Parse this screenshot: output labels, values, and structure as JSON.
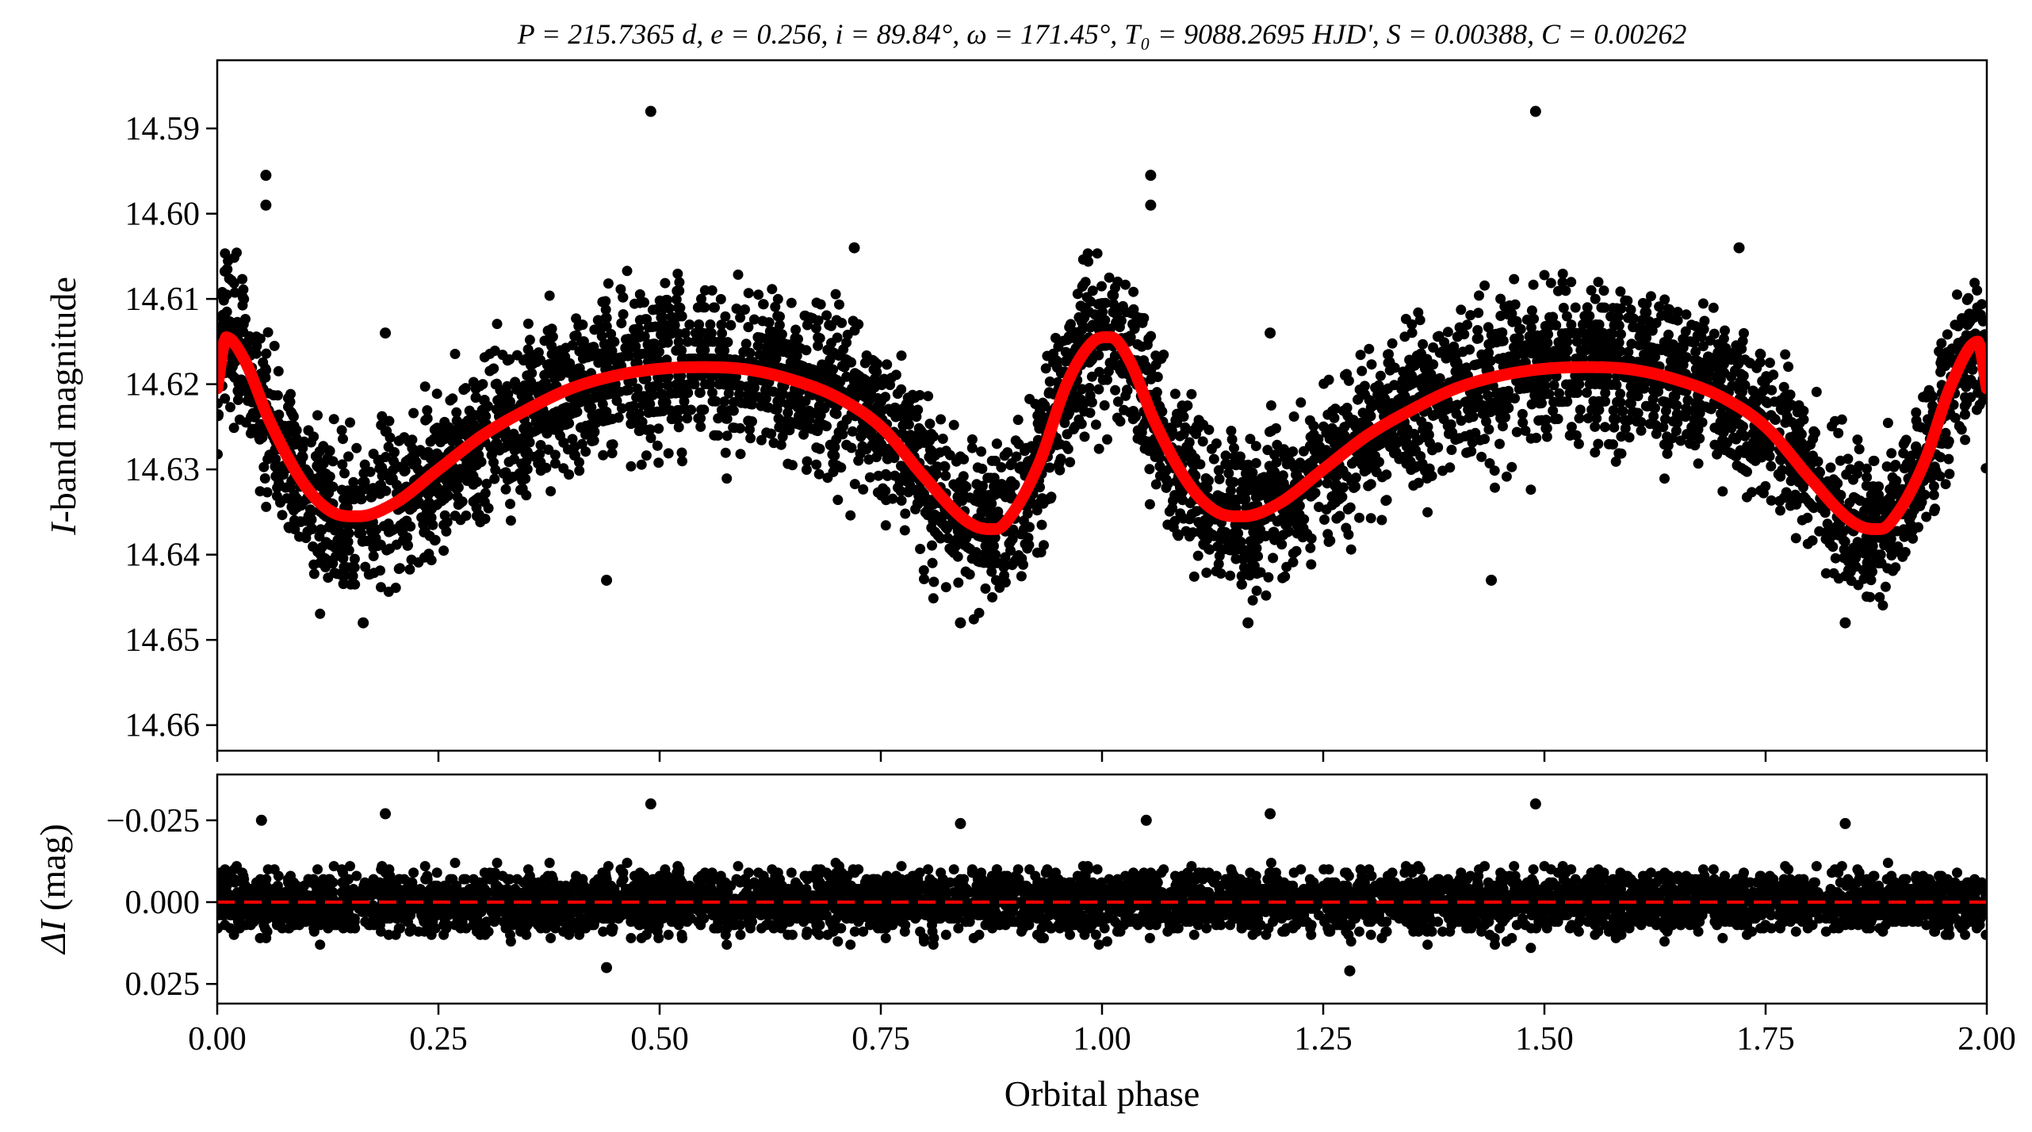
{
  "chart_data": [
    {
      "type": "scatter",
      "title": "P = 215.7365 d, e = 0.256, i = 89.84°, ω = 171.45°, T₀ = 9088.2695 HJD', S = 0.00388, C = 0.00262",
      "xlabel": "Orbital phase",
      "ylabel_prefix": "I",
      "ylabel_suffix": "-band magnitude",
      "ylabel": "I-band magnitude",
      "xlim": [
        0.0,
        2.0
      ],
      "ylim": [
        14.663,
        14.582
      ],
      "y_inverted": true,
      "yticks": [
        14.59,
        14.6,
        14.61,
        14.62,
        14.63,
        14.64,
        14.65,
        14.66
      ],
      "ytick_labels": [
        "14.59",
        "14.60",
        "14.61",
        "14.62",
        "14.63",
        "14.64",
        "14.65",
        "14.66"
      ],
      "xticks": [
        0.0,
        0.25,
        0.5,
        0.75,
        1.0,
        1.25,
        1.5,
        1.75,
        2.0
      ],
      "series": [
        {
          "style": "points",
          "color": "#000000",
          "note_points": "dense cloud following the model with scatter about ±0.007 mag",
          "outliers": [
            {
              "x": 0.055,
              "y": 14.5955
            },
            {
              "x": 0.055,
              "y": 14.599
            },
            {
              "x": 0.19,
              "y": 14.614
            },
            {
              "x": 0.49,
              "y": 14.588
            },
            {
              "x": 0.72,
              "y": 14.604
            },
            {
              "x": 0.84,
              "y": 14.648
            },
            {
              "x": 1.055,
              "y": 14.5955
            },
            {
              "x": 1.055,
              "y": 14.599
            },
            {
              "x": 1.19,
              "y": 14.614
            },
            {
              "x": 1.49,
              "y": 14.588
            },
            {
              "x": 1.72,
              "y": 14.604
            },
            {
              "x": 1.84,
              "y": 14.648
            },
            {
              "x": 0.165,
              "y": 14.648
            },
            {
              "x": 1.165,
              "y": 14.648
            },
            {
              "x": 0.44,
              "y": 14.643
            },
            {
              "x": 1.44,
              "y": 14.643
            }
          ]
        },
        {
          "style": "line",
          "color": "#ff0000",
          "x": [
            0.0,
            0.01,
            0.03,
            0.06,
            0.1,
            0.13,
            0.16,
            0.2,
            0.25,
            0.3,
            0.35,
            0.4,
            0.45,
            0.5,
            0.55,
            0.6,
            0.65,
            0.7,
            0.75,
            0.8,
            0.84,
            0.86,
            0.88,
            0.9,
            0.93,
            0.96,
            0.99,
            1.01,
            1.03,
            1.06,
            1.1,
            1.13,
            1.16,
            1.2,
            1.25,
            1.3,
            1.35,
            1.4,
            1.45,
            1.5,
            1.55,
            1.6,
            1.65,
            1.7,
            1.75,
            1.8,
            1.84,
            1.86,
            1.88,
            1.9,
            1.93,
            1.96,
            1.99,
            2.0
          ],
          "y": [
            14.6205,
            14.6145,
            14.617,
            14.6245,
            14.632,
            14.635,
            14.6355,
            14.634,
            14.63,
            14.626,
            14.623,
            14.6205,
            14.619,
            14.6182,
            14.618,
            14.6183,
            14.6195,
            14.6215,
            14.625,
            14.631,
            14.6355,
            14.6368,
            14.637,
            14.635,
            14.629,
            14.62,
            14.615,
            14.6145,
            14.617,
            14.6245,
            14.632,
            14.635,
            14.6355,
            14.634,
            14.63,
            14.626,
            14.623,
            14.6205,
            14.619,
            14.6182,
            14.618,
            14.6183,
            14.6195,
            14.6215,
            14.625,
            14.631,
            14.6355,
            14.6368,
            14.637,
            14.635,
            14.629,
            14.62,
            14.615,
            14.6205
          ]
        }
      ]
    },
    {
      "type": "scatter",
      "xlabel": "Orbital phase",
      "ylabel_prefix": "ΔI",
      "ylabel_suffix": " (mag)",
      "ylabel": "ΔI (mag)",
      "xlim": [
        0.0,
        2.0
      ],
      "ylim": [
        0.031,
        -0.039
      ],
      "y_inverted": true,
      "yticks": [
        -0.025,
        0.0,
        0.025
      ],
      "ytick_labels": [
        "−0.025",
        "0.000",
        "0.025"
      ],
      "xticks": [
        0.0,
        0.25,
        0.5,
        0.75,
        1.0,
        1.25,
        1.5,
        1.75,
        2.0
      ],
      "xtick_labels": [
        "0.00",
        "0.25",
        "0.50",
        "0.75",
        "1.00",
        "1.25",
        "1.50",
        "1.75",
        "2.00"
      ],
      "series": [
        {
          "style": "points",
          "color": "#000000",
          "note_points": "residual band about ±0.012 mag",
          "outliers": [
            {
              "x": 0.05,
              "y": -0.025
            },
            {
              "x": 0.19,
              "y": -0.027
            },
            {
              "x": 0.49,
              "y": -0.03
            },
            {
              "x": 0.84,
              "y": -0.024
            },
            {
              "x": 1.05,
              "y": -0.025
            },
            {
              "x": 1.19,
              "y": -0.027
            },
            {
              "x": 1.49,
              "y": -0.03
            },
            {
              "x": 1.84,
              "y": -0.024
            },
            {
              "x": 0.44,
              "y": 0.02
            },
            {
              "x": 1.28,
              "y": 0.021
            }
          ]
        },
        {
          "style": "dashed-line",
          "color": "#ff0000",
          "x": [
            0.0,
            2.0
          ],
          "y": [
            0.0,
            0.0
          ]
        }
      ]
    }
  ]
}
